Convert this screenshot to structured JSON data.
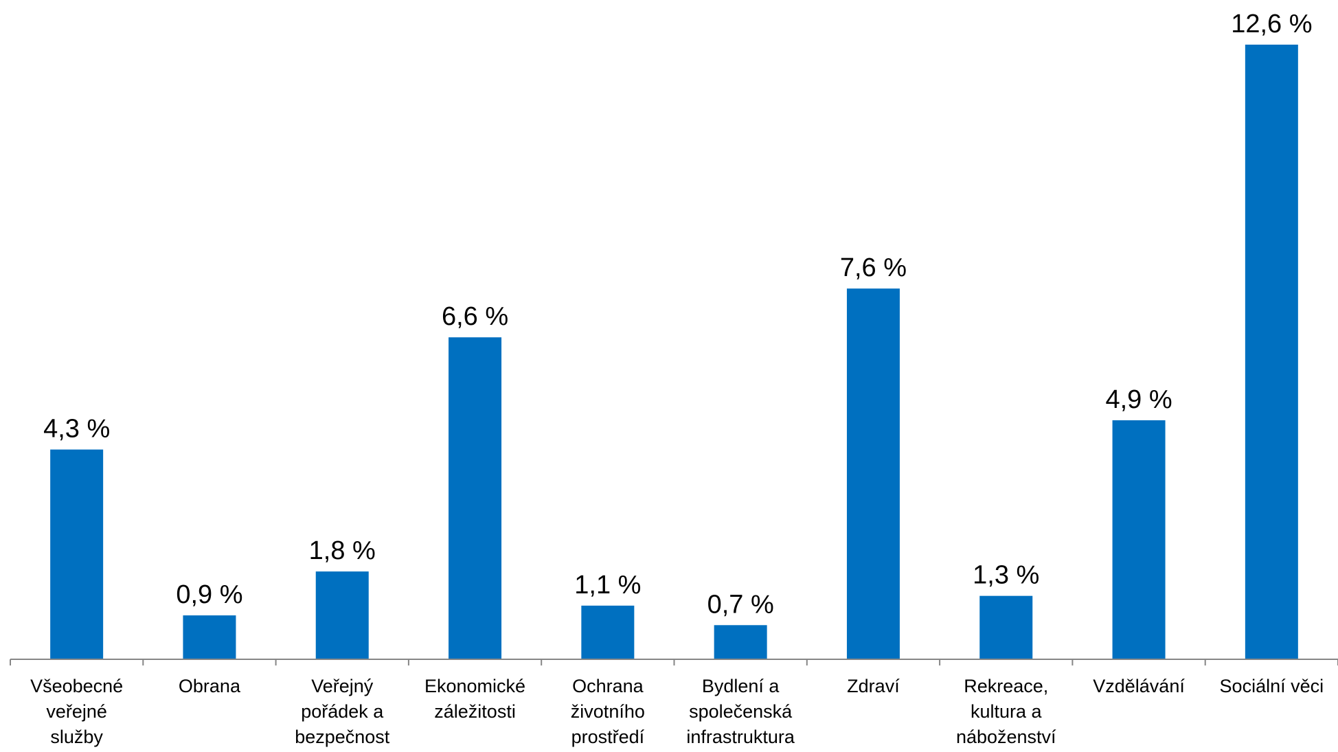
{
  "chart_data": {
    "type": "bar",
    "categories": [
      [
        "Všeobecné",
        "veřejné",
        "služby"
      ],
      [
        "Obrana"
      ],
      [
        "Veřejný",
        "pořádek a",
        "bezpečnost"
      ],
      [
        "Ekonomické",
        "záležitosti"
      ],
      [
        "Ochrana",
        "životního",
        "prostředí"
      ],
      [
        "Bydlení a",
        "společenská",
        "infrastruktura"
      ],
      [
        "Zdraví"
      ],
      [
        "Rekreace,",
        "kultura a",
        "náboženství"
      ],
      [
        "Vzdělávání"
      ],
      [
        "Sociální věci"
      ]
    ],
    "values": [
      4.3,
      0.9,
      1.8,
      6.6,
      1.1,
      0.7,
      7.6,
      1.3,
      4.9,
      12.6
    ],
    "data_labels": [
      "4,3 %",
      "0,9 %",
      "1,8 %",
      "6,6 %",
      "1,1 %",
      "0,7 %",
      "7,6 %",
      "1,3 %",
      "4,9 %",
      "12,6 %"
    ],
    "ylim": [
      0,
      12.6
    ],
    "grid": false,
    "colors": {
      "bar": "#0070C0",
      "axis": "#868686"
    }
  }
}
